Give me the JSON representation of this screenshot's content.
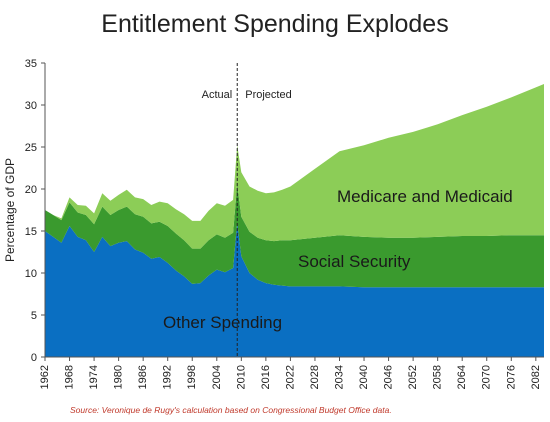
{
  "chart_data": {
    "type": "area",
    "stacked": true,
    "title": "Entitlement Spending Explodes",
    "ylabel": "Percentage of GDP",
    "xlabel": "",
    "ylim": [
      0,
      35
    ],
    "xlim": [
      1962,
      2084
    ],
    "yticks": [
      0,
      5,
      10,
      15,
      20,
      25,
      30,
      35
    ],
    "xtick_labels": [
      "1962",
      "1968",
      "1974",
      "1980",
      "1986",
      "1992",
      "1998",
      "2004",
      "2010",
      "2016",
      "2022",
      "2028",
      "2034",
      "2040",
      "2046",
      "2052",
      "2058",
      "2064",
      "2070",
      "2076",
      "2082"
    ],
    "grid": false,
    "legend": "none",
    "divider": {
      "x": 2009,
      "left_label": "Actual",
      "right_label": "Projected"
    },
    "x": [
      1962,
      1964,
      1966,
      1968,
      1970,
      1972,
      1974,
      1976,
      1978,
      1980,
      1982,
      1984,
      1986,
      1988,
      1990,
      1992,
      1994,
      1996,
      1998,
      2000,
      2002,
      2004,
      2006,
      2008,
      2009,
      2010,
      2012,
      2014,
      2016,
      2018,
      2020,
      2022,
      2028,
      2034,
      2040,
      2046,
      2052,
      2058,
      2064,
      2070,
      2076,
      2082,
      2084
    ],
    "series": [
      {
        "name": "Other Spending",
        "color": "#0a6fc2",
        "values": [
          15.0,
          14.3,
          13.6,
          15.6,
          14.3,
          13.9,
          12.5,
          14.3,
          13.2,
          13.6,
          13.8,
          12.8,
          12.4,
          11.7,
          11.9,
          11.2,
          10.3,
          9.6,
          8.7,
          8.8,
          9.7,
          10.4,
          10.1,
          10.6,
          16.0,
          12.0,
          10.0,
          9.2,
          8.8,
          8.6,
          8.5,
          8.4,
          8.4,
          8.4,
          8.3,
          8.3,
          8.3,
          8.3,
          8.3,
          8.3,
          8.3,
          8.3,
          8.3
        ]
      },
      {
        "name": "Social Security",
        "color": "#3a9a2e",
        "values": [
          2.5,
          2.6,
          2.7,
          2.8,
          2.9,
          3.0,
          3.3,
          3.6,
          3.7,
          3.9,
          4.1,
          4.2,
          4.3,
          4.2,
          4.2,
          4.4,
          4.4,
          4.3,
          4.2,
          4.1,
          4.2,
          4.2,
          4.1,
          4.2,
          4.6,
          4.7,
          4.9,
          5.0,
          5.1,
          5.2,
          5.4,
          5.5,
          5.8,
          6.1,
          6.0,
          5.9,
          5.9,
          6.0,
          6.1,
          6.1,
          6.2,
          6.2,
          6.2
        ]
      },
      {
        "name": "Medicare and Medicaid",
        "color": "#8ccd57",
        "values": [
          0.0,
          0.0,
          0.2,
          0.6,
          0.9,
          1.1,
          1.3,
          1.6,
          1.7,
          1.8,
          2.0,
          2.0,
          2.1,
          2.2,
          2.4,
          2.7,
          2.9,
          3.1,
          3.3,
          3.3,
          3.5,
          3.7,
          3.8,
          3.9,
          4.6,
          5.3,
          5.4,
          5.6,
          5.6,
          5.8,
          6.0,
          6.4,
          8.2,
          10.0,
          10.9,
          11.9,
          12.6,
          13.4,
          14.4,
          15.4,
          16.4,
          17.6,
          18.0
        ]
      }
    ],
    "annotations": [
      "Medicare and Medicaid",
      "Social Security",
      "Other Spending"
    ]
  },
  "source_note": "Source: Veronique de Rugy's calculation based on Congressional Budget Office data."
}
